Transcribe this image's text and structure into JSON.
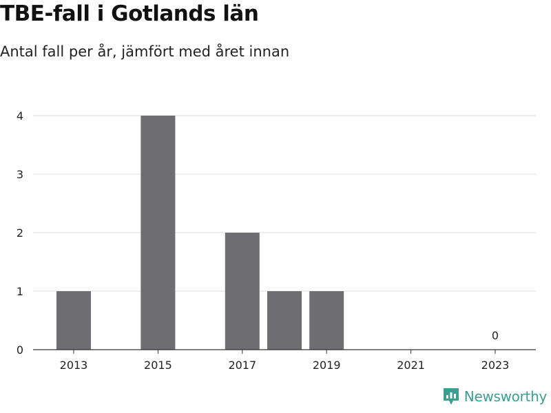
{
  "chart_data": {
    "type": "bar",
    "title": "TBE-fall i Gotlands län",
    "subtitle": "Antal fall per år, jämfört med året innan",
    "categories": [
      "2013",
      "2014",
      "2015",
      "2016",
      "2017",
      "2018",
      "2019",
      "2020",
      "2021",
      "2022",
      "2023"
    ],
    "values": [
      1,
      null,
      4,
      null,
      2,
      1,
      1,
      null,
      null,
      null,
      0
    ],
    "x_tick_labels": [
      "2013",
      "2015",
      "2017",
      "2019",
      "2021",
      "2023"
    ],
    "y_ticks": [
      0,
      1,
      2,
      3,
      4
    ],
    "ylim": [
      0,
      4
    ],
    "grid": true,
    "bar_color": "#6e6d72",
    "data_labels": [
      {
        "category": "2023",
        "text": "0"
      }
    ],
    "xlabel": "",
    "ylabel": ""
  },
  "brand": {
    "name": "Newsworthy",
    "color": "#3b9e91",
    "icon": "newsworthy-logo-icon"
  }
}
